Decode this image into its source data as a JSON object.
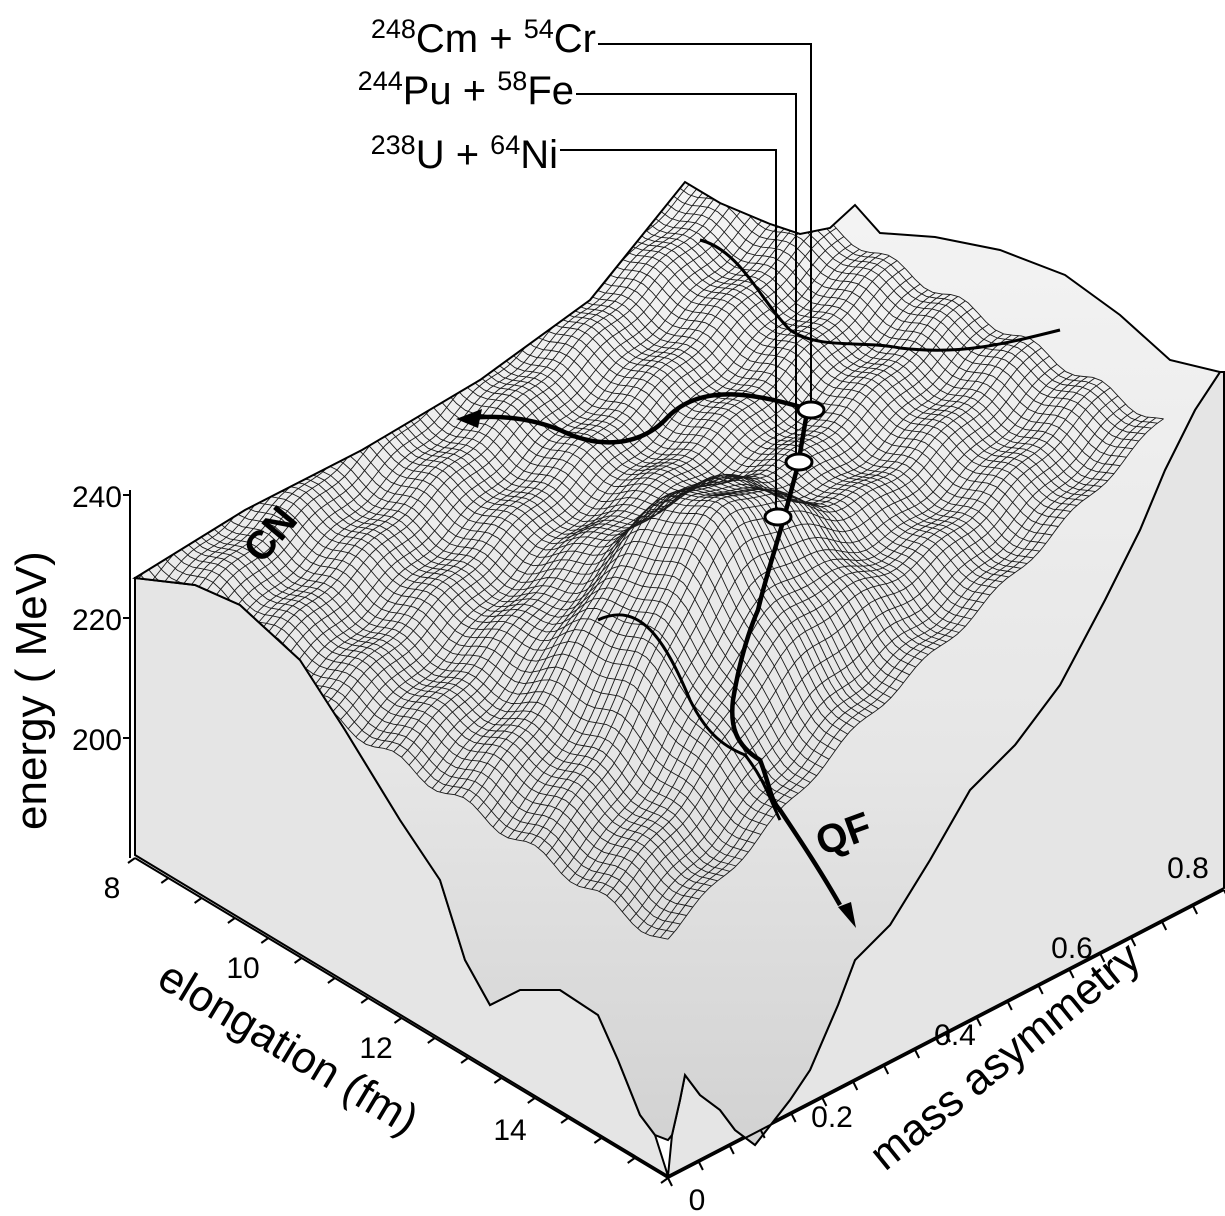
{
  "chart_data": {
    "type": "surface",
    "z_axis": {
      "label": "energy ( MeV)",
      "ticks": [
        "240",
        "220",
        "200"
      ]
    },
    "x_axis": {
      "label": "elongation (fm)",
      "ticks": [
        "8",
        "10",
        "12",
        "14"
      ]
    },
    "y_axis": {
      "label": "mass  asymmetry",
      "ticks": [
        "0",
        "0.2",
        "0.4",
        "0.6",
        "0.8"
      ]
    },
    "reactions": [
      {
        "target_mass": "248",
        "target": "Cm",
        "projectile_mass": "54",
        "projectile": "Cr"
      },
      {
        "target_mass": "244",
        "target": "Pu",
        "projectile_mass": "58",
        "projectile": "Fe"
      },
      {
        "target_mass": "238",
        "target": "U",
        "projectile_mass": "64",
        "projectile": "Ni"
      }
    ],
    "path_labels": {
      "compound_nucleus": "CN",
      "quasi_fission": "QF"
    },
    "colors": {
      "surface": "#efefef",
      "walls": "#e5e5e5",
      "mesh": "#1a1a1a"
    }
  }
}
